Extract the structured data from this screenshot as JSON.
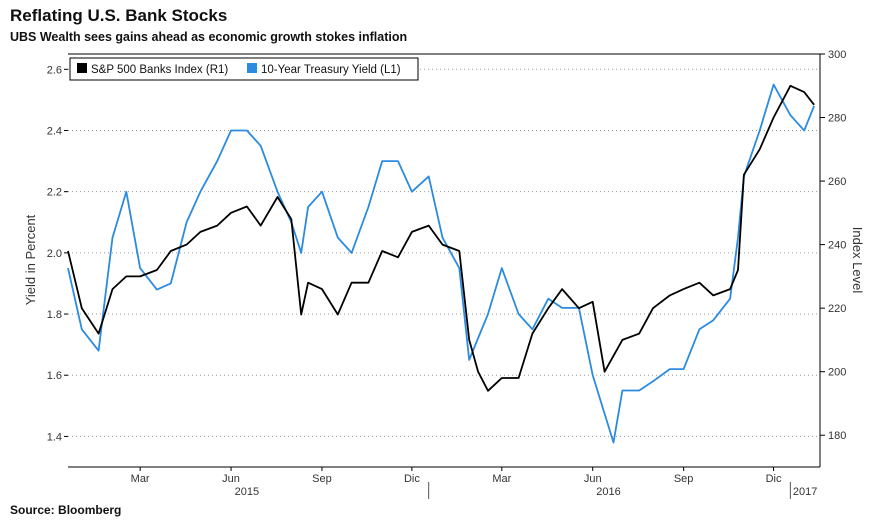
{
  "header": {
    "title": "Reflating U.S. Bank Stocks",
    "subtitle": "UBS Wealth sees gains ahead as economic growth stokes inflation"
  },
  "footer": {
    "source": "Bloomberg",
    "source_label": "Source:"
  },
  "colors": {
    "banks": "#000000",
    "treasury": "#2b8be0",
    "grid": "#999999"
  },
  "chart_data": {
    "type": "line",
    "ylabel": "Yield in Percent",
    "ylabel_right": "Index Level",
    "ylim_left": [
      1.3,
      2.65
    ],
    "ylim_right": [
      170,
      300
    ],
    "yticks_left": [
      "1.4",
      "1.6",
      "1.8",
      "2.0",
      "2.2",
      "2.4",
      "2.6"
    ],
    "yticks_right": [
      "180",
      "200",
      "220",
      "240",
      "260",
      "280",
      "300"
    ],
    "xlim": [
      "2015-01-01",
      "2017-01-31"
    ],
    "x_month_ticks": [
      {
        "label": "Mar",
        "date": "2015-03-15"
      },
      {
        "label": "Jun",
        "date": "2015-06-15"
      },
      {
        "label": "Sep",
        "date": "2015-09-15"
      },
      {
        "label": "Dic",
        "date": "2015-12-15"
      },
      {
        "label": "Mar",
        "date": "2016-03-15"
      },
      {
        "label": "Jun",
        "date": "2016-06-15"
      },
      {
        "label": "Sep",
        "date": "2016-09-15"
      },
      {
        "label": "Dic",
        "date": "2016-12-15"
      }
    ],
    "x_year_labels": [
      {
        "label": "2015",
        "date": "2015-07-01"
      },
      {
        "label": "2016",
        "date": "2016-07-01"
      },
      {
        "label": "2017",
        "date": "2017-01-16"
      }
    ],
    "x_year_boundaries": [
      "2016-01-01",
      "2017-01-01"
    ],
    "legend_position": "top-left",
    "grid": "horizontal-dotted",
    "series": [
      {
        "name": "S&P 500 Banks Index (R1)",
        "axis": "right",
        "x": [
          "2015-01-01",
          "2015-01-15",
          "2015-02-01",
          "2015-02-15",
          "2015-03-01",
          "2015-03-15",
          "2015-04-01",
          "2015-04-15",
          "2015-05-01",
          "2015-05-15",
          "2015-06-01",
          "2015-06-15",
          "2015-07-01",
          "2015-07-15",
          "2015-08-01",
          "2015-08-15",
          "2015-08-25",
          "2015-09-01",
          "2015-09-15",
          "2015-10-01",
          "2015-10-15",
          "2015-11-01",
          "2015-11-15",
          "2015-12-01",
          "2015-12-15",
          "2016-01-01",
          "2016-01-15",
          "2016-02-01",
          "2016-02-11",
          "2016-02-20",
          "2016-03-01",
          "2016-03-15",
          "2016-04-01",
          "2016-04-15",
          "2016-05-01",
          "2016-05-15",
          "2016-06-01",
          "2016-06-15",
          "2016-06-27",
          "2016-07-15",
          "2016-08-01",
          "2016-08-15",
          "2016-09-01",
          "2016-09-15",
          "2016-10-01",
          "2016-10-15",
          "2016-11-01",
          "2016-11-09",
          "2016-11-15",
          "2016-12-01",
          "2016-12-15",
          "2017-01-01",
          "2017-01-15",
          "2017-01-25"
        ],
        "values": [
          238,
          220,
          212,
          226,
          230,
          230,
          232,
          238,
          240,
          244,
          246,
          250,
          252,
          246,
          255,
          248,
          218,
          228,
          226,
          218,
          228,
          228,
          238,
          236,
          244,
          246,
          240,
          238,
          210,
          200,
          194,
          198,
          198,
          212,
          220,
          226,
          220,
          222,
          200,
          210,
          212,
          220,
          224,
          226,
          228,
          224,
          226,
          232,
          262,
          270,
          280,
          290,
          288,
          284
        ]
      },
      {
        "name": "10-Year Treasury Yield (L1)",
        "axis": "left",
        "x": [
          "2015-01-01",
          "2015-01-15",
          "2015-02-01",
          "2015-02-15",
          "2015-03-01",
          "2015-03-15",
          "2015-04-01",
          "2015-04-15",
          "2015-05-01",
          "2015-05-15",
          "2015-06-01",
          "2015-06-15",
          "2015-07-01",
          "2015-07-15",
          "2015-08-01",
          "2015-08-15",
          "2015-08-25",
          "2015-09-01",
          "2015-09-15",
          "2015-10-01",
          "2015-10-15",
          "2015-11-01",
          "2015-11-15",
          "2015-12-01",
          "2015-12-15",
          "2016-01-01",
          "2016-01-15",
          "2016-02-01",
          "2016-02-11",
          "2016-03-01",
          "2016-03-15",
          "2016-04-01",
          "2016-04-15",
          "2016-05-01",
          "2016-05-15",
          "2016-06-01",
          "2016-06-15",
          "2016-07-06",
          "2016-07-15",
          "2016-08-01",
          "2016-08-15",
          "2016-09-01",
          "2016-09-15",
          "2016-10-01",
          "2016-10-15",
          "2016-11-01",
          "2016-11-09",
          "2016-11-15",
          "2016-12-01",
          "2016-12-15",
          "2017-01-01",
          "2017-01-15",
          "2017-01-25"
        ],
        "values": [
          1.95,
          1.75,
          1.68,
          2.05,
          2.2,
          1.95,
          1.88,
          1.9,
          2.1,
          2.2,
          2.3,
          2.4,
          2.4,
          2.35,
          2.2,
          2.1,
          2.0,
          2.15,
          2.2,
          2.05,
          2.0,
          2.15,
          2.3,
          2.3,
          2.2,
          2.25,
          2.05,
          1.95,
          1.65,
          1.8,
          1.95,
          1.8,
          1.75,
          1.85,
          1.82,
          1.82,
          1.6,
          1.38,
          1.55,
          1.55,
          1.58,
          1.62,
          1.62,
          1.75,
          1.78,
          1.85,
          2.05,
          2.25,
          2.4,
          2.55,
          2.45,
          2.4,
          2.48
        ]
      }
    ]
  }
}
